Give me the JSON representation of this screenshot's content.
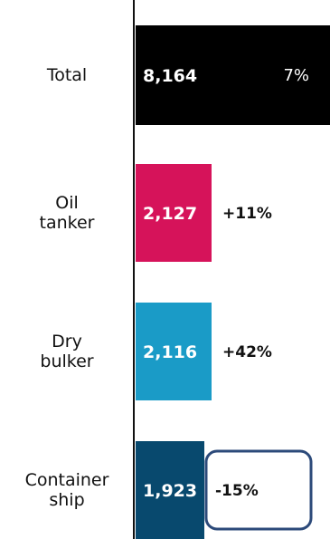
{
  "chart_data": {
    "type": "bar",
    "orientation": "horizontal",
    "categories": [
      "Total",
      "Oil tanker",
      "Dry bulker",
      "Container ship"
    ],
    "category_lines": [
      [
        "Total"
      ],
      [
        "Oil",
        "tanker"
      ],
      [
        "Dry",
        "bulker"
      ],
      [
        "Container",
        "ship"
      ]
    ],
    "values": [
      8164,
      2127,
      2116,
      1923
    ],
    "value_labels": [
      "8,164",
      "2,127",
      "2,116",
      "1,923"
    ],
    "change_labels": [
      "7%",
      "+11%",
      "+42%",
      "-15%"
    ],
    "colors": [
      "#000000",
      "#d6135a",
      "#1a9bc7",
      "#08496e"
    ],
    "highlight_color": "#2c4a7a",
    "highlighted_index": 3,
    "grid": false,
    "legend": "none"
  }
}
